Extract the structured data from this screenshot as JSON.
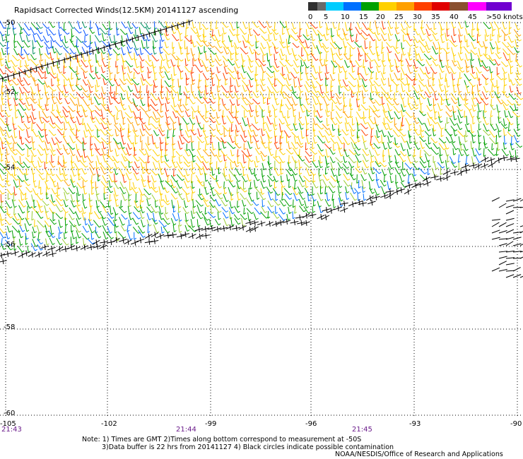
{
  "title": "Rapidsact Corrected Winds(12.5KM) 20141127 ascending",
  "legend": {
    "labels": [
      "0",
      "5",
      "10",
      "15",
      "20",
      "25",
      "30",
      "35",
      "40",
      "45",
      ">50 knots"
    ],
    "colors": [
      "#303030",
      "#6a6a6a",
      "#00ccff",
      "#0070ff",
      "#00a000",
      "#ffd000",
      "#ffa000",
      "#ff4000",
      "#e00000",
      "#8a5030",
      "#ff00ff",
      "#7000d0"
    ]
  },
  "map": {
    "lat_labels": [
      "-50",
      "-52",
      "-54",
      "-56",
      "-58",
      "-60"
    ],
    "lon_labels": [
      "-105",
      "-102",
      "-99",
      "-96",
      "-93",
      "-90"
    ],
    "time_labels": [
      "21:43",
      "21:44",
      "21:45"
    ]
  },
  "notes": [
    "Note: 1) Times are GMT 2)Times along bottom correspond to measurement at -50S",
    "3)Data buffer is 22 hrs from 20141127 4) Black circles indicate possible contamination"
  ],
  "credit": "NOAA/NESDIS/Office of Research and Applications"
}
